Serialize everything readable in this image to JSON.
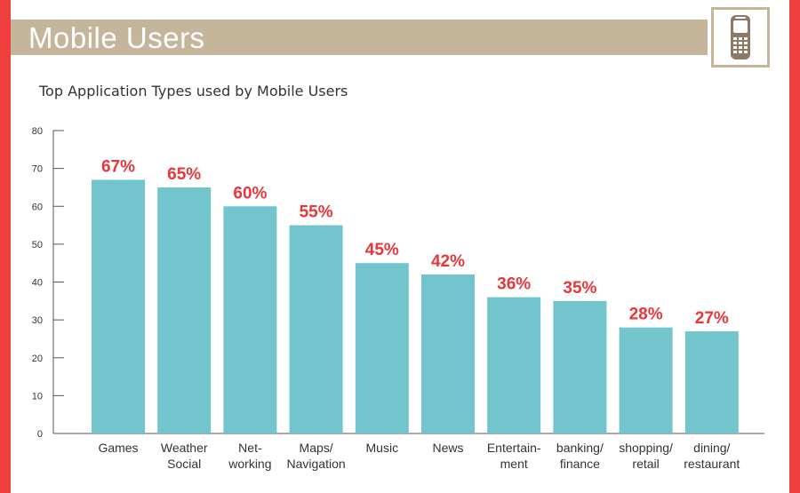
{
  "header": {
    "title": "Mobile Users",
    "icon": "mobile-phone-icon"
  },
  "colors": {
    "accent_red": "#ee3e3e",
    "band": "#c4b59b",
    "bar": "#72c5cd",
    "label_red": "#e8373a"
  },
  "chart_data": {
    "type": "bar",
    "title": "Top Application Types used by Mobile Users",
    "xlabel": "",
    "ylabel": "",
    "ylim": [
      0,
      80
    ],
    "yticks": [
      0,
      10,
      20,
      30,
      40,
      50,
      60,
      70,
      80
    ],
    "categories": [
      [
        "Games"
      ],
      [
        "Weather",
        "Social"
      ],
      [
        "Net-",
        "working"
      ],
      [
        "Maps/",
        "Navigation"
      ],
      [
        "Music"
      ],
      [
        "News"
      ],
      [
        "Entertain-",
        "ment"
      ],
      [
        "banking/",
        "finance"
      ],
      [
        "shopping/",
        "retail"
      ],
      [
        "dining/",
        "restaurant"
      ]
    ],
    "values": [
      67,
      65,
      60,
      55,
      45,
      42,
      36,
      35,
      28,
      27
    ],
    "labels": [
      "67%",
      "65%",
      "60%",
      "55%",
      "45%",
      "42%",
      "36%",
      "35%",
      "28%",
      "27%"
    ],
    "grid": false,
    "legend": "none"
  }
}
